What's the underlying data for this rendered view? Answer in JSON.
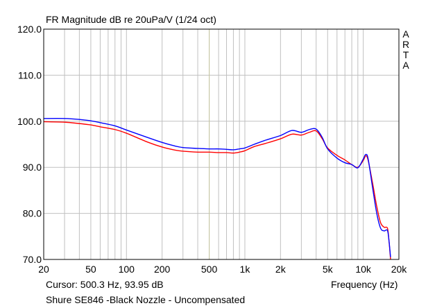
{
  "title": "FR Magnitude dB re 20uPa/V (1/24 oct)",
  "cursor_text": "Cursor: 500.3 Hz, 93.95 dB",
  "xlabel": "Frequency (Hz)",
  "caption": "Shure SE846 -Black Nozzle - Uncompensated",
  "watermark_letters": [
    "A",
    "R",
    "T",
    "A"
  ],
  "colors": {
    "grid": "#c0c0c0",
    "cursor": "#c8c8a0",
    "series_red": "#ff0000",
    "series_blue": "#0000ff",
    "frame": "#000000"
  },
  "chart_data": {
    "type": "line",
    "x_scale": "log",
    "xlim": [
      20,
      20000
    ],
    "ylim": [
      70,
      120
    ],
    "grid": true,
    "x_ticks": [
      {
        "value": 20,
        "label": "20"
      },
      {
        "value": 50,
        "label": "50"
      },
      {
        "value": 100,
        "label": "100"
      },
      {
        "value": 200,
        "label": "200"
      },
      {
        "value": 500,
        "label": "500"
      },
      {
        "value": 1000,
        "label": "1k"
      },
      {
        "value": 2000,
        "label": "2k"
      },
      {
        "value": 5000,
        "label": "5k"
      },
      {
        "value": 10000,
        "label": "10k"
      },
      {
        "value": 20000,
        "label": "20k"
      }
    ],
    "y_ticks": [
      {
        "value": 70,
        "label": "70.0"
      },
      {
        "value": 80,
        "label": "80.0"
      },
      {
        "value": 90,
        "label": "90.0"
      },
      {
        "value": 100,
        "label": "100.0"
      },
      {
        "value": 110,
        "label": "110.0"
      },
      {
        "value": 120,
        "label": "120.0"
      }
    ],
    "cursor_x": 500.3,
    "series": [
      {
        "color": "#ff0000",
        "points": [
          [
            20,
            99.9
          ],
          [
            30,
            99.8
          ],
          [
            40,
            99.5
          ],
          [
            50,
            99.2
          ],
          [
            60,
            98.8
          ],
          [
            80,
            98.2
          ],
          [
            100,
            97.4
          ],
          [
            150,
            95.5
          ],
          [
            200,
            94.4
          ],
          [
            250,
            93.8
          ],
          [
            300,
            93.5
          ],
          [
            400,
            93.3
          ],
          [
            500,
            93.3
          ],
          [
            600,
            93.2
          ],
          [
            700,
            93.2
          ],
          [
            800,
            93.1
          ],
          [
            900,
            93.3
          ],
          [
            1000,
            93.6
          ],
          [
            1200,
            94.5
          ],
          [
            1500,
            95.2
          ],
          [
            2000,
            96.2
          ],
          [
            2500,
            97.2
          ],
          [
            3000,
            97.0
          ],
          [
            3500,
            97.6
          ],
          [
            4000,
            97.9
          ],
          [
            4500,
            96.2
          ],
          [
            5000,
            94.2
          ],
          [
            6000,
            92.6
          ],
          [
            7000,
            91.6
          ],
          [
            8000,
            90.6
          ],
          [
            9000,
            90.0
          ],
          [
            10000,
            91.5
          ],
          [
            10500,
            92.5
          ],
          [
            11000,
            91.5
          ],
          [
            12000,
            86.5
          ],
          [
            13000,
            81.5
          ],
          [
            14000,
            78.0
          ],
          [
            15000,
            77.0
          ],
          [
            16000,
            76.8
          ],
          [
            16500,
            74.0
          ],
          [
            17000,
            70.0
          ]
        ]
      },
      {
        "color": "#0000ff",
        "points": [
          [
            20,
            100.6
          ],
          [
            30,
            100.6
          ],
          [
            40,
            100.4
          ],
          [
            50,
            100.1
          ],
          [
            60,
            99.7
          ],
          [
            80,
            99.0
          ],
          [
            100,
            98.1
          ],
          [
            150,
            96.5
          ],
          [
            200,
            95.4
          ],
          [
            250,
            94.7
          ],
          [
            300,
            94.3
          ],
          [
            400,
            94.1
          ],
          [
            500,
            94.0
          ],
          [
            600,
            94.0
          ],
          [
            700,
            93.9
          ],
          [
            800,
            93.8
          ],
          [
            900,
            94.0
          ],
          [
            1000,
            94.2
          ],
          [
            1200,
            95.0
          ],
          [
            1500,
            95.9
          ],
          [
            2000,
            96.9
          ],
          [
            2500,
            98.0
          ],
          [
            3000,
            97.6
          ],
          [
            3500,
            98.2
          ],
          [
            4000,
            98.3
          ],
          [
            4500,
            96.5
          ],
          [
            5000,
            94.0
          ],
          [
            6000,
            92.0
          ],
          [
            7000,
            91.0
          ],
          [
            8000,
            90.6
          ],
          [
            9000,
            89.9
          ],
          [
            10000,
            91.8
          ],
          [
            10500,
            92.8
          ],
          [
            11000,
            91.8
          ],
          [
            12000,
            85.5
          ],
          [
            13000,
            80.0
          ],
          [
            14000,
            76.8
          ],
          [
            15000,
            76.2
          ],
          [
            16000,
            76.3
          ],
          [
            16500,
            74.0
          ],
          [
            17000,
            70.5
          ]
        ]
      }
    ]
  }
}
